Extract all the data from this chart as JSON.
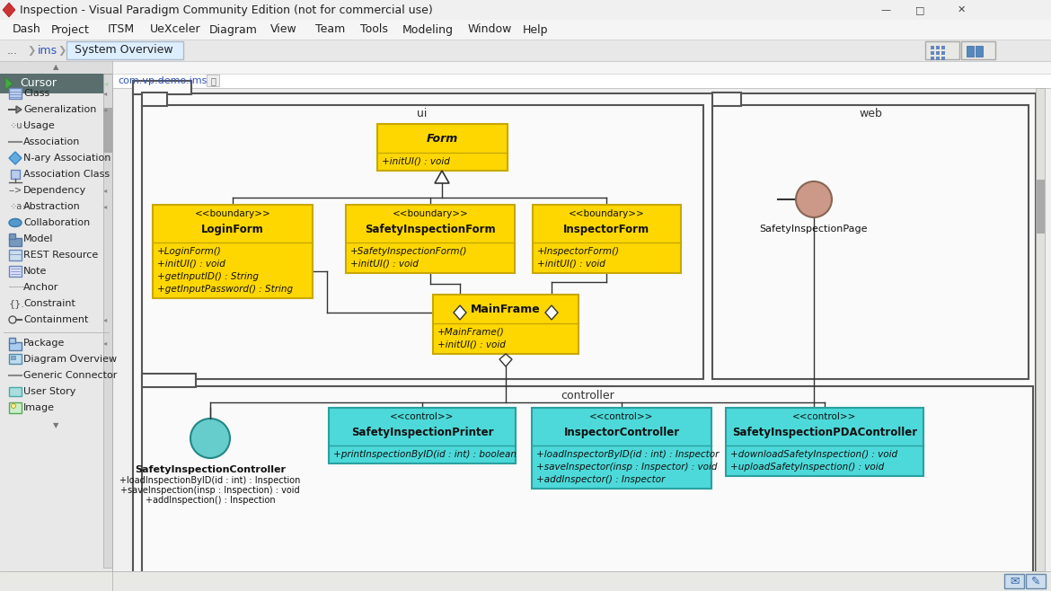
{
  "title": "Inspection - Visual Paradigm Community Edition (not for commercial use)",
  "menu_items": [
    "Dash",
    "Project",
    "ITSM",
    "UeXceler",
    "Diagram",
    "View",
    "Team",
    "Tools",
    "Modeling",
    "Window",
    "Help"
  ],
  "menu_x": [
    30,
    78,
    135,
    195,
    260,
    316,
    368,
    416,
    476,
    545,
    596
  ],
  "sidebar_items": [
    "Class",
    "Generalization",
    "Usage",
    "Association",
    "N-ary Association",
    "Association Class",
    "Dependency",
    "Abstraction",
    "Collaboration",
    "Model",
    "REST Resource",
    "Note",
    "Anchor",
    "Constraint",
    "Containment"
  ],
  "sidebar_items2": [
    "Package",
    "Diagram Overview",
    "Generic Connector",
    "User Story",
    "Image"
  ],
  "yellow_bg": "#FFD700",
  "yellow_border": "#C8A800",
  "cyan_bg": "#4DD9D9",
  "cyan_border": "#2AA0A0",
  "pkg_bg": "#FAFAFA",
  "pkg_border": "#444444",
  "sidebar_bg": "#E8E8E8",
  "sidebar_sel_bg": "#5A6E6E",
  "canvas_bg": "#F2F2F2",
  "titlebar_bg": "#F0F0F0",
  "menubar_bg": "#F5F5F5",
  "breadcrumb_bg": "#E8E8E8"
}
